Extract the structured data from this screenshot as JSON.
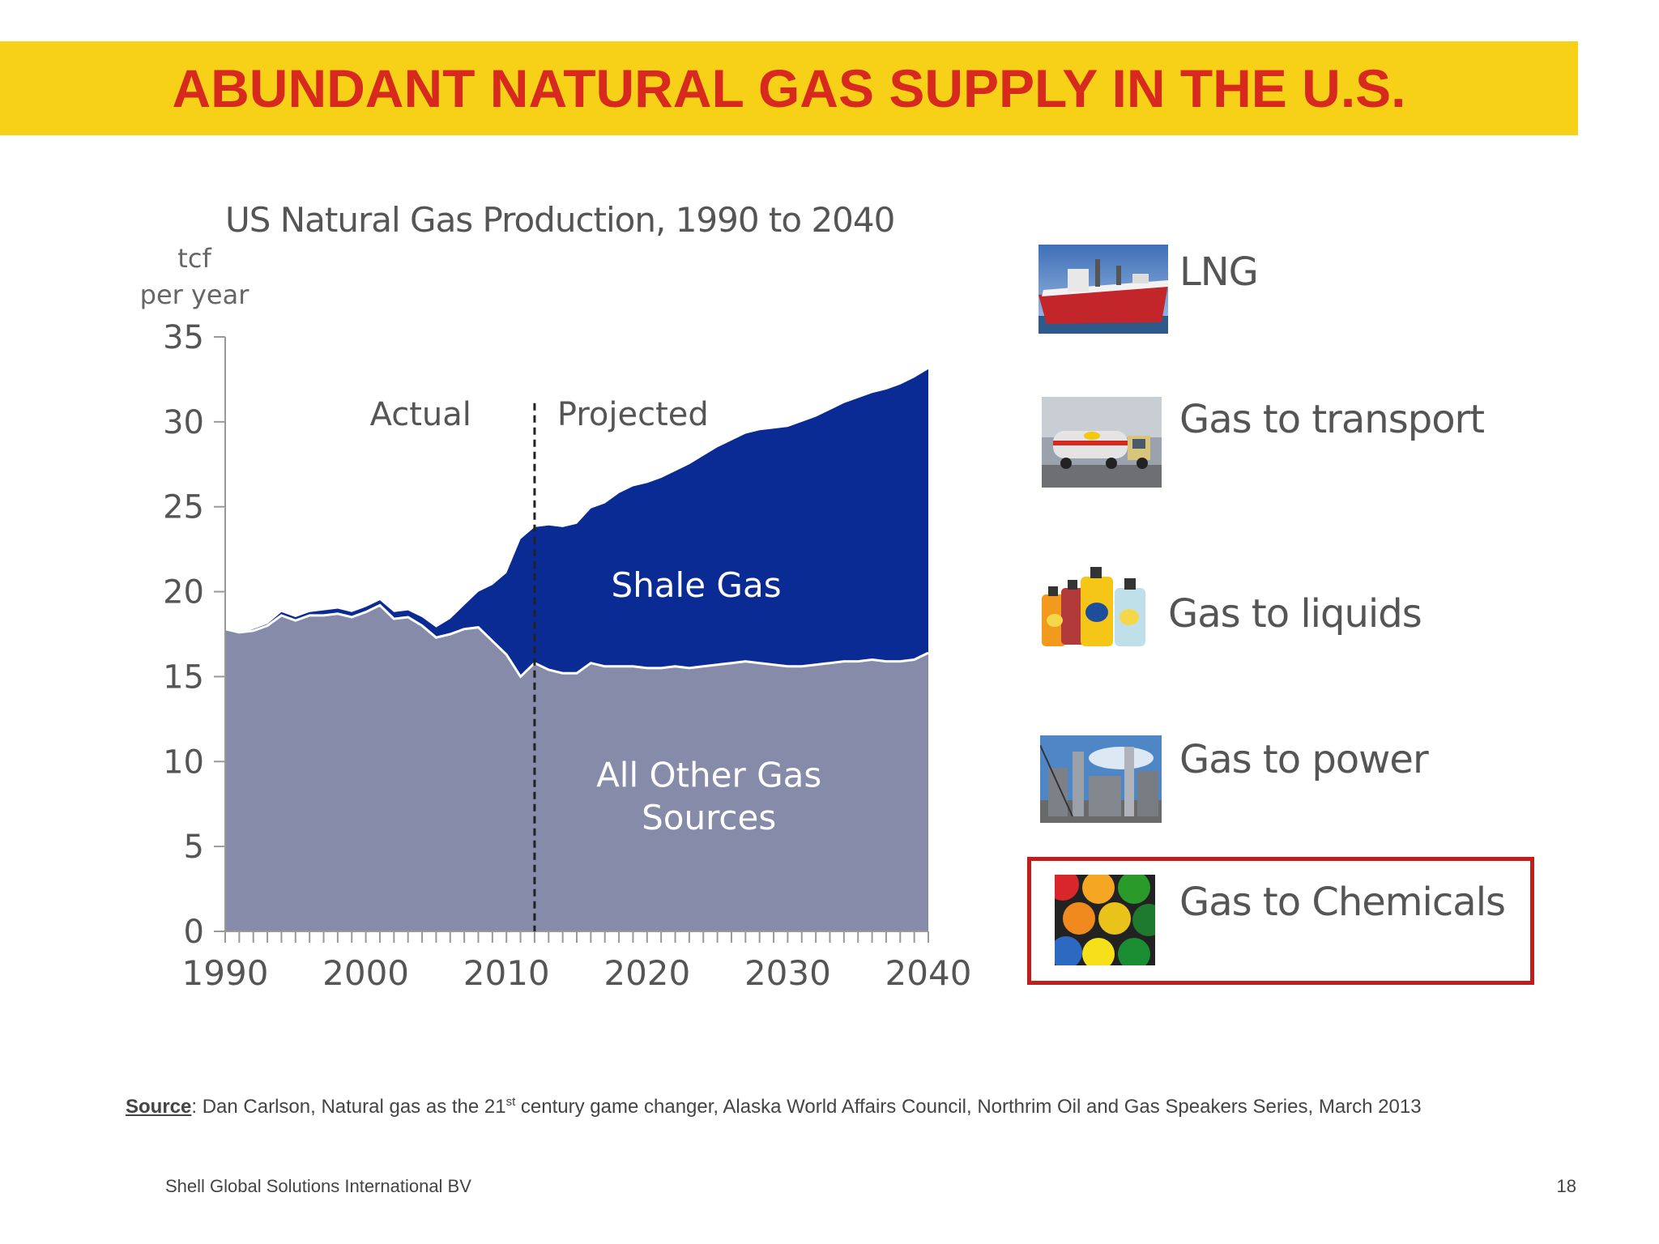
{
  "slide": {
    "title": "ABUNDANT NATURAL GAS SUPPLY IN THE U.S.",
    "colors": {
      "band": "#f7d117",
      "title": "#d7291e",
      "highlight_frame": "#c01d1d"
    }
  },
  "chart_data": {
    "type": "area",
    "title": "US Natural Gas Production, 1990 to 2040",
    "ylabel_line1": "tcf",
    "ylabel_line2": "per year",
    "xlabel": "",
    "xlim": [
      1990,
      2040
    ],
    "ylim": [
      0,
      35
    ],
    "x_ticks": [
      1990,
      2000,
      2010,
      2020,
      2030,
      2040
    ],
    "y_ticks": [
      0,
      5,
      10,
      15,
      20,
      25,
      30,
      35
    ],
    "stacked": true,
    "divider_year": 2012,
    "region_labels": {
      "actual": "Actual",
      "projected": "Projected"
    },
    "series": [
      {
        "name": "All Other Gas Sources",
        "label_line1": "All Other Gas",
        "label_line2": "Sources",
        "color": "#858ba8",
        "values": [
          [
            1990,
            17.8
          ],
          [
            1991,
            17.6
          ],
          [
            1992,
            17.7
          ],
          [
            1993,
            18.0
          ],
          [
            1994,
            18.6
          ],
          [
            1995,
            18.3
          ],
          [
            1996,
            18.6
          ],
          [
            1997,
            18.6
          ],
          [
            1998,
            18.7
          ],
          [
            1999,
            18.5
          ],
          [
            2000,
            18.8
          ],
          [
            2001,
            19.2
          ],
          [
            2002,
            18.4
          ],
          [
            2003,
            18.5
          ],
          [
            2004,
            18.0
          ],
          [
            2005,
            17.3
          ],
          [
            2006,
            17.5
          ],
          [
            2007,
            17.8
          ],
          [
            2008,
            17.9
          ],
          [
            2009,
            17.1
          ],
          [
            2010,
            16.3
          ],
          [
            2011,
            15.0
          ],
          [
            2012,
            15.8
          ],
          [
            2013,
            15.4
          ],
          [
            2014,
            15.2
          ],
          [
            2015,
            15.2
          ],
          [
            2016,
            15.8
          ],
          [
            2017,
            15.6
          ],
          [
            2018,
            15.6
          ],
          [
            2019,
            15.6
          ],
          [
            2020,
            15.5
          ],
          [
            2021,
            15.5
          ],
          [
            2022,
            15.6
          ],
          [
            2023,
            15.5
          ],
          [
            2024,
            15.6
          ],
          [
            2025,
            15.7
          ],
          [
            2026,
            15.8
          ],
          [
            2027,
            15.9
          ],
          [
            2028,
            15.8
          ],
          [
            2029,
            15.7
          ],
          [
            2030,
            15.6
          ],
          [
            2031,
            15.6
          ],
          [
            2032,
            15.7
          ],
          [
            2033,
            15.8
          ],
          [
            2034,
            15.9
          ],
          [
            2035,
            15.9
          ],
          [
            2036,
            16.0
          ],
          [
            2037,
            15.9
          ],
          [
            2038,
            15.9
          ],
          [
            2039,
            16.0
          ],
          [
            2040,
            16.4
          ]
        ]
      },
      {
        "name": "Shale Gas",
        "label_line1": "Shale Gas",
        "label_line2": "",
        "color": "#0a2a94",
        "values": [
          [
            1990,
            0.0
          ],
          [
            1991,
            0.0
          ],
          [
            1992,
            0.1
          ],
          [
            1993,
            0.1
          ],
          [
            1994,
            0.2
          ],
          [
            1995,
            0.2
          ],
          [
            1996,
            0.2
          ],
          [
            1997,
            0.3
          ],
          [
            1998,
            0.3
          ],
          [
            1999,
            0.3
          ],
          [
            2000,
            0.3
          ],
          [
            2001,
            0.3
          ],
          [
            2002,
            0.4
          ],
          [
            2003,
            0.4
          ],
          [
            2004,
            0.5
          ],
          [
            2005,
            0.6
          ],
          [
            2006,
            0.9
          ],
          [
            2007,
            1.4
          ],
          [
            2008,
            2.1
          ],
          [
            2009,
            3.3
          ],
          [
            2010,
            4.8
          ],
          [
            2011,
            8.1
          ],
          [
            2012,
            8.0
          ],
          [
            2013,
            8.5
          ],
          [
            2014,
            8.6
          ],
          [
            2015,
            8.8
          ],
          [
            2016,
            9.1
          ],
          [
            2017,
            9.6
          ],
          [
            2018,
            10.2
          ],
          [
            2019,
            10.6
          ],
          [
            2020,
            10.9
          ],
          [
            2021,
            11.2
          ],
          [
            2022,
            11.5
          ],
          [
            2023,
            12.0
          ],
          [
            2024,
            12.4
          ],
          [
            2025,
            12.8
          ],
          [
            2026,
            13.1
          ],
          [
            2027,
            13.4
          ],
          [
            2028,
            13.7
          ],
          [
            2029,
            13.9
          ],
          [
            2030,
            14.1
          ],
          [
            2031,
            14.4
          ],
          [
            2032,
            14.6
          ],
          [
            2033,
            14.9
          ],
          [
            2034,
            15.2
          ],
          [
            2035,
            15.5
          ],
          [
            2036,
            15.7
          ],
          [
            2037,
            16.0
          ],
          [
            2038,
            16.3
          ],
          [
            2039,
            16.6
          ],
          [
            2040,
            16.7
          ]
        ]
      }
    ]
  },
  "uses": [
    {
      "key": "lng",
      "label": "LNG",
      "icon": "lng-tanker-photo"
    },
    {
      "key": "transport",
      "label": "Gas to transport",
      "icon": "fuel-truck-photo"
    },
    {
      "key": "liquids",
      "label": "Gas to liquids",
      "icon": "oil-bottles-photo"
    },
    {
      "key": "power",
      "label": "Gas to power",
      "icon": "power-plant-photo"
    },
    {
      "key": "chemicals",
      "label": "Gas to Chemicals",
      "icon": "paint-cans-photo"
    }
  ],
  "source": {
    "label": "Source",
    "text_before_sup": ": Dan Carlson, Natural gas as the 21",
    "sup": "st",
    "text_after_sup": " century game changer, Alaska World Affairs Council, Northrim Oil and Gas Speakers Series, March 2013"
  },
  "footer": {
    "company": "Shell Global Solutions International BV",
    "page_number": "18"
  }
}
